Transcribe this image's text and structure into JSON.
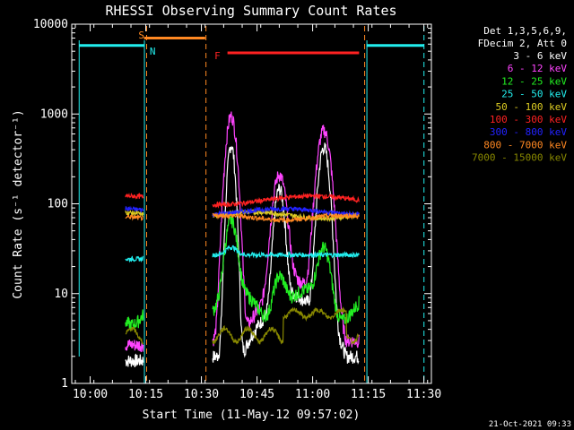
{
  "chart_data": {
    "type": "line",
    "title": "RHESSI Observing Summary Count Rates",
    "xlabel": "Start Time (11-May-12 09:57:02)",
    "ylabel": "Count Rate (s⁻¹ detector⁻¹)",
    "y_scale": "log",
    "ylim": [
      1,
      10000
    ],
    "xlim_minutes_after_start": [
      -2.0,
      95.0
    ],
    "x_ticks": [
      "10:00",
      "10:15",
      "10:30",
      "10:45",
      "11:00",
      "11:15",
      "11:30"
    ],
    "x_tick_minutes": [
      2.97,
      17.97,
      32.97,
      47.97,
      62.97,
      77.97,
      92.97
    ],
    "y_ticks": [
      "1",
      "10",
      "100",
      "1000",
      "10000"
    ],
    "y_tick_values": [
      1,
      10,
      100,
      1000,
      10000
    ],
    "legend_header": [
      "Det 1,3,5,6,9,",
      "FDecim 2, Att 0"
    ],
    "legend_position": "top-right",
    "series": [
      {
        "name": "3 - 6 keV",
        "color": "#ffffff"
      },
      {
        "name": "6 - 12 keV",
        "color": "#ff44ff"
      },
      {
        "name": "12 - 25 keV",
        "color": "#22ee22"
      },
      {
        "name": "25 - 50 keV",
        "color": "#22eeee"
      },
      {
        "name": "50 - 100 keV",
        "color": "#ddcc22"
      },
      {
        "name": "100 - 300 keV",
        "color": "#ff2222"
      },
      {
        "name": "300 - 800 keV",
        "color": "#2222ff"
      },
      {
        "name": "800 - 7000 keV",
        "color": "#ff8822"
      },
      {
        "name": "7000 - 15000 keV",
        "color": "#888800"
      }
    ],
    "flag_bars": [
      {
        "label": "S",
        "color": "#ff8822",
        "x_start": 17.5,
        "x_end": 34.0,
        "y": 7000
      },
      {
        "label": "N",
        "color": "#22eeee",
        "x_start": 0.0,
        "x_end": 17.5,
        "y": 5800
      },
      {
        "label": "N2",
        "color": "#22eeee",
        "x_start": 77.5,
        "x_end": 93.0,
        "y": 5800
      },
      {
        "label": "F",
        "color": "#ff2222",
        "x_start": 40.0,
        "x_end": 75.5,
        "y": 4800
      }
    ],
    "annotations": [
      "S",
      "N",
      "F"
    ],
    "timestamp": "21-Oct-2021 09:33"
  }
}
